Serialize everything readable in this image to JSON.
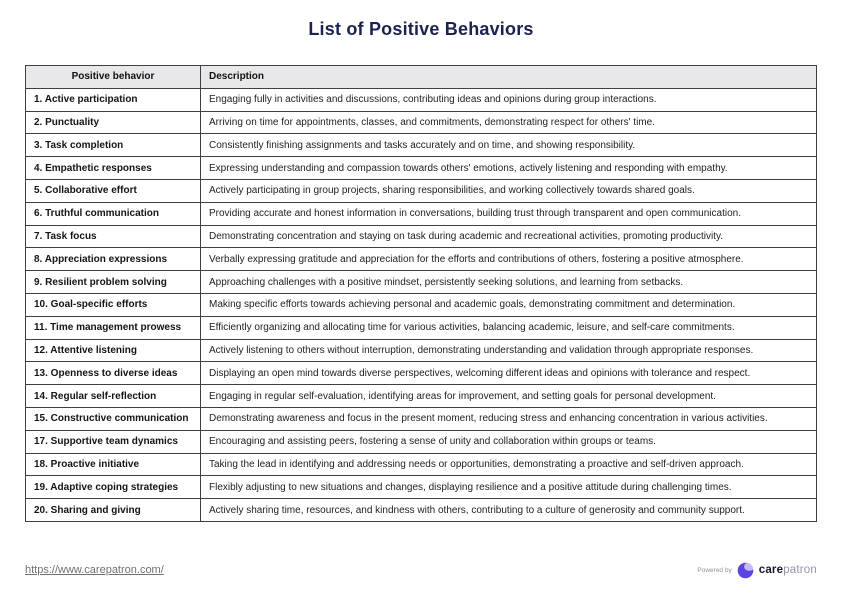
{
  "page": {
    "title": "List of Positive Behaviors"
  },
  "table": {
    "headers": [
      "Positive behavior",
      "Description"
    ],
    "rows": [
      {
        "behavior": "1. Active participation",
        "description": "Engaging fully in activities and discussions, contributing ideas and opinions during group interactions."
      },
      {
        "behavior": "2. Punctuality",
        "description": "Arriving on time for appointments, classes, and commitments, demonstrating respect for others' time."
      },
      {
        "behavior": "3. Task completion",
        "description": "Consistently finishing assignments and tasks accurately and on time, and showing responsibility."
      },
      {
        "behavior": "4. Empathetic responses",
        "description": "Expressing understanding and compassion towards others' emotions, actively listening and responding with empathy."
      },
      {
        "behavior": "5. Collaborative effort",
        "description": "Actively participating in group projects, sharing responsibilities, and working collectively towards shared goals."
      },
      {
        "behavior": "6. Truthful communication",
        "description": "Providing accurate and honest information in conversations, building trust through transparent and open communication."
      },
      {
        "behavior": "7. Task focus",
        "description": "Demonstrating concentration and staying on task during academic and recreational activities, promoting productivity."
      },
      {
        "behavior": "8. Appreciation expressions",
        "description": "Verbally expressing gratitude and appreciation for the efforts and contributions of others, fostering a positive atmosphere."
      },
      {
        "behavior": "9. Resilient problem solving",
        "description": "Approaching challenges with a positive mindset, persistently seeking solutions, and learning from setbacks."
      },
      {
        "behavior": "10. Goal-specific efforts",
        "description": "Making specific efforts towards achieving personal and academic goals, demonstrating commitment and determination."
      },
      {
        "behavior": "11. Time management prowess",
        "description": "Efficiently organizing and allocating time for various activities, balancing academic, leisure, and self-care commitments."
      },
      {
        "behavior": "12. Attentive listening",
        "description": "Actively listening to others without interruption, demonstrating understanding and validation through appropriate responses."
      },
      {
        "behavior": "13. Openness to diverse ideas",
        "description": "Displaying an open mind towards diverse perspectives, welcoming different ideas and opinions with tolerance and respect."
      },
      {
        "behavior": "14. Regular self-reflection",
        "description": "Engaging in regular self-evaluation, identifying areas for improvement, and setting goals for personal development."
      },
      {
        "behavior": "15. Constructive communication",
        "description": "Demonstrating awareness and focus in the present moment, reducing stress and enhancing concentration in various activities."
      },
      {
        "behavior": "17. Supportive team dynamics",
        "description": "Encouraging and assisting peers, fostering a sense of unity and collaboration within groups or teams."
      },
      {
        "behavior": "18. Proactive initiative",
        "description": "Taking the lead in identifying and addressing needs or opportunities, demonstrating a proactive and self-driven approach."
      },
      {
        "behavior": "19. Adaptive coping strategies",
        "description": "Flexibly adjusting to new situations and changes, displaying resilience and a positive attitude during challenging times."
      },
      {
        "behavior": "20. Sharing and giving",
        "description": "Actively sharing time, resources, and kindness with others, contributing to a culture of generosity and community support."
      }
    ]
  },
  "footer": {
    "url": "https://www.carepatron.com/",
    "powered_by": "Powered by",
    "brand_bold": "care",
    "brand_light": "patron",
    "logo_icon": "carepatron-blob-icon"
  },
  "colors": {
    "title": "#1b2150",
    "header_bg": "#e8e8ea",
    "border": "#3f3f3f",
    "brand_purple": "#5b45e0",
    "brand_lavender": "#c8baf8"
  }
}
